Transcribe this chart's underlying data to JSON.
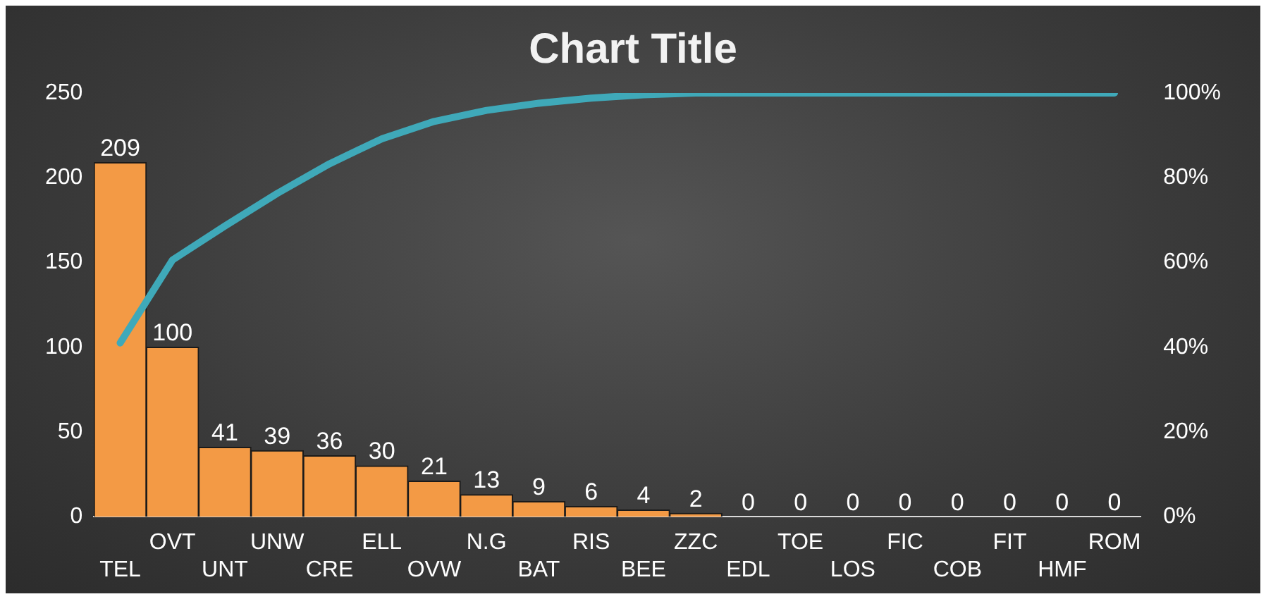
{
  "chart_data": {
    "type": "bar",
    "title": "Chart Title",
    "categories": [
      "TEL",
      "OVT",
      "UNT",
      "UNW",
      "CRE",
      "ELL",
      "OVW",
      "N.G",
      "BAT",
      "RIS",
      "BEE",
      "ZZC",
      "EDL",
      "TOE",
      "LOS",
      "FIC",
      "COB",
      "FIT",
      "HMF",
      "ROM"
    ],
    "series": [
      {
        "color": "#f39a45",
        "values": [
          209,
          100,
          41,
          39,
          36,
          30,
          21,
          13,
          9,
          6,
          4,
          2,
          0,
          0,
          0,
          0,
          0,
          0,
          0,
          0
        ],
        "value_labels": [
          "209",
          "100",
          "41",
          "39",
          "36",
          "30",
          "21",
          "13",
          "9",
          "6",
          "4",
          "2",
          "0",
          "0",
          "0",
          "0",
          "0",
          "0",
          "0",
          "0"
        ]
      },
      {
        "type": "line",
        "axis": "y2",
        "color": "#3fa9b9",
        "values": [
          41,
          60.6,
          68.6,
          76.3,
          83.3,
          89.2,
          93.3,
          95.9,
          97.6,
          98.8,
          99.6,
          100,
          100,
          100,
          100,
          100,
          100,
          100,
          100,
          100
        ]
      }
    ],
    "ylim": [
      0,
      250
    ],
    "yticks": [
      0,
      50,
      100,
      150,
      200,
      250
    ],
    "y2lim": [
      0,
      100
    ],
    "y2ticks": [
      {
        "value": 0,
        "label": "0%"
      },
      {
        "value": 20,
        "label": "20%"
      },
      {
        "value": 40,
        "label": "40%"
      },
      {
        "value": 60,
        "label": "60%"
      },
      {
        "value": 80,
        "label": "80%"
      },
      {
        "value": 100,
        "label": "100%"
      }
    ],
    "grid": false,
    "legend": false,
    "marker": "none",
    "line_style": "solid"
  }
}
